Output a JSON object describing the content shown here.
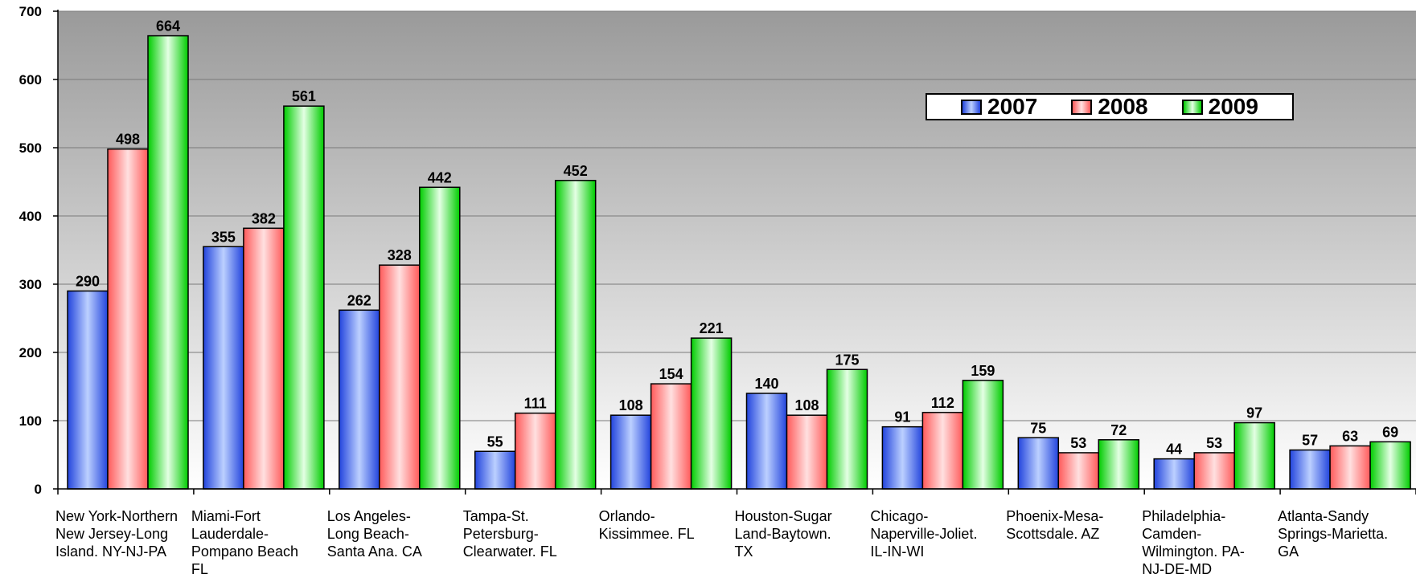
{
  "chart_data": {
    "type": "bar",
    "title": "",
    "xlabel": "",
    "ylabel": "",
    "ylim": [
      0,
      700
    ],
    "yticks": [
      0,
      100,
      200,
      300,
      400,
      500,
      600,
      700
    ],
    "grid": true,
    "legend_position": "top-right",
    "categories": [
      [
        "New York-Northern",
        "New Jersey-Long",
        "Island. NY-NJ-PA"
      ],
      [
        "Miami-Fort",
        "Lauderdale-",
        "Pompano Beach",
        "FL"
      ],
      [
        "Los Angeles-",
        "Long Beach-",
        "Santa Ana. CA"
      ],
      [
        "Tampa-St.",
        "Petersburg-",
        "Clearwater. FL"
      ],
      [
        "Orlando-",
        "Kissimmee. FL"
      ],
      [
        "Houston-Sugar",
        "Land-Baytown.",
        "TX"
      ],
      [
        "Chicago-",
        "Naperville-Joliet.",
        "IL-IN-WI"
      ],
      [
        "Phoenix-Mesa-",
        "Scottsdale. AZ"
      ],
      [
        "Philadelphia-",
        "Camden-",
        "Wilmington. PA-",
        "NJ-DE-MD"
      ],
      [
        "Atlanta-Sandy",
        "Springs-Marietta.",
        "GA"
      ]
    ],
    "series": [
      {
        "name": "2007",
        "color": "#3355ee",
        "values": [
          290,
          355,
          262,
          55,
          108,
          140,
          91,
          75,
          44,
          57
        ]
      },
      {
        "name": "2008",
        "color": "#ff6b6b",
        "values": [
          498,
          382,
          328,
          111,
          154,
          108,
          112,
          53,
          53,
          63
        ]
      },
      {
        "name": "2009",
        "color": "#11dd11",
        "values": [
          664,
          561,
          442,
          452,
          221,
          175,
          159,
          72,
          97,
          69
        ]
      }
    ]
  }
}
